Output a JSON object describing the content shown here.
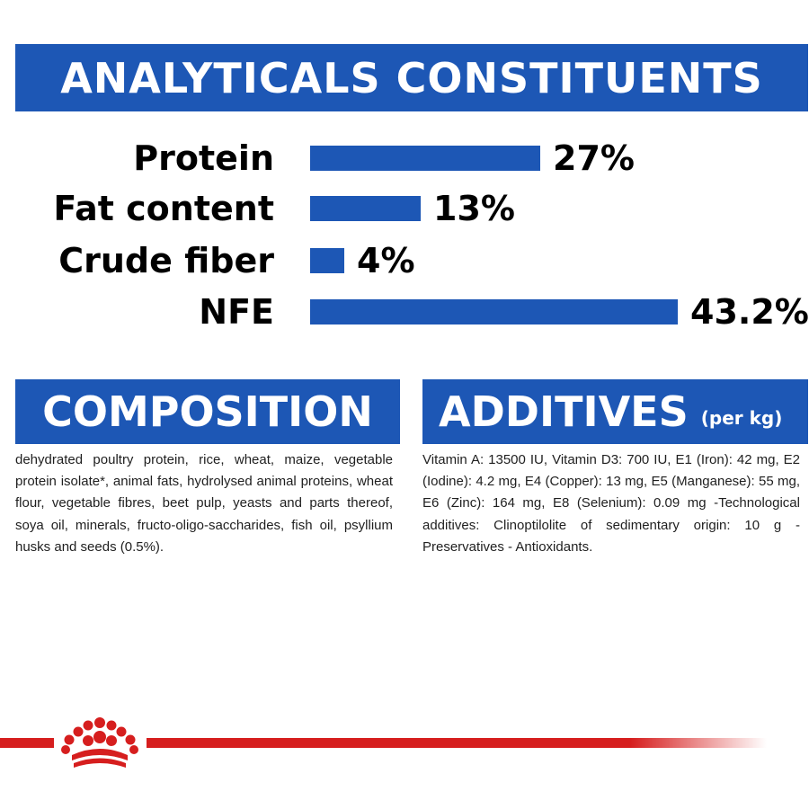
{
  "analyticals": {
    "title": "ANALYTICALS CONSTITUENTS",
    "rows": [
      {
        "label": "Protein",
        "value": "27%",
        "percent": 27
      },
      {
        "label": "Fat content",
        "value": "13%",
        "percent": 13
      },
      {
        "label": "Crude fiber",
        "value": "4%",
        "percent": 4
      },
      {
        "label": "NFE",
        "value": "43.2%",
        "percent": 43.2
      }
    ]
  },
  "composition": {
    "title": "COMPOSITION",
    "text": "dehydrated poultry protein, rice, wheat, maize, vegetable protein isolate*, animal fats, hydrolysed animal proteins, wheat flour, vegetable fibres, beet pulp, yeasts and parts thereof, soya oil, minerals, fructo-oligo-saccharides, fish oil, psyllium husks and seeds (0.5%)."
  },
  "additives": {
    "title": "ADDITIVES",
    "subtitle": "(per kg)",
    "text": "Vitamin A: 13500 IU, Vitamin D3: 700 IU, E1 (Iron): 42 mg, E2 (Iodine): 4.2 mg, E4 (Copper): 13 mg, E5 (Manganese): 55 mg, E6 (Zinc): 164 mg, E8 (Selenium): 0.09 mg -Technological additives: Clinoptilolite of sedimentary origin: 10 g - Preservatives - Antioxidants."
  },
  "brand": {
    "logo_icon": "crown-icon",
    "accent_color": "#d61e1e",
    "primary_color": "#1d57b5"
  }
}
